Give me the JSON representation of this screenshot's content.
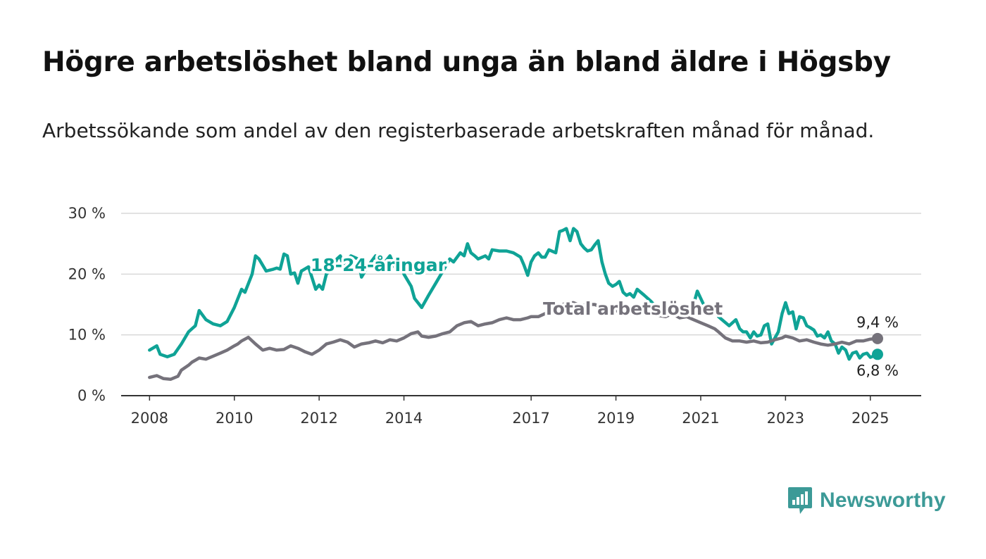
{
  "chart_data": {
    "type": "line",
    "title": "Högre arbetslöshet bland unga än bland äldre i Högsby",
    "subtitle": "Arbetssökande som andel av den registerbaserade arbetskraften månad för månad.",
    "ylim": [
      0,
      30
    ],
    "y_ticks": [
      {
        "value": 0,
        "label": "0 %"
      },
      {
        "value": 10,
        "label": "10 %"
      },
      {
        "value": 20,
        "label": "20 %"
      },
      {
        "value": 30,
        "label": "30 %"
      }
    ],
    "x_ticks": [
      {
        "value": 2008.0,
        "label": "2008"
      },
      {
        "value": 2010.0,
        "label": "2010"
      },
      {
        "value": 2012.0,
        "label": "2012"
      },
      {
        "value": 2014.0,
        "label": "2014"
      },
      {
        "value": 2017.0,
        "label": "2017"
      },
      {
        "value": 2019.0,
        "label": "2019"
      },
      {
        "value": 2021.0,
        "label": "2021"
      },
      {
        "value": 2023.0,
        "label": "2023"
      },
      {
        "value": 2025.0,
        "label": "2025"
      }
    ],
    "grid": true,
    "series": [
      {
        "name": "18-24-åringar",
        "color": "#0fa396",
        "end_label": "6,8 %",
        "points": [
          [
            2008.0,
            7.5
          ],
          [
            2008.17,
            8.2
          ],
          [
            2008.25,
            6.8
          ],
          [
            2008.42,
            6.4
          ],
          [
            2008.58,
            6.8
          ],
          [
            2008.75,
            8.5
          ],
          [
            2008.92,
            10.5
          ],
          [
            2009.0,
            11.0
          ],
          [
            2009.08,
            11.5
          ],
          [
            2009.17,
            14.0
          ],
          [
            2009.33,
            12.5
          ],
          [
            2009.5,
            11.8
          ],
          [
            2009.67,
            11.5
          ],
          [
            2009.83,
            12.2
          ],
          [
            2010.0,
            14.5
          ],
          [
            2010.17,
            17.5
          ],
          [
            2010.25,
            17.0
          ],
          [
            2010.42,
            20.0
          ],
          [
            2010.5,
            23.0
          ],
          [
            2010.58,
            22.5
          ],
          [
            2010.75,
            20.5
          ],
          [
            2010.92,
            20.8
          ],
          [
            2011.0,
            21.0
          ],
          [
            2011.08,
            20.8
          ],
          [
            2011.17,
            23.3
          ],
          [
            2011.25,
            23.0
          ],
          [
            2011.33,
            20.0
          ],
          [
            2011.42,
            20.2
          ],
          [
            2011.5,
            18.5
          ],
          [
            2011.58,
            20.5
          ],
          [
            2011.75,
            21.2
          ],
          [
            2011.92,
            17.5
          ],
          [
            2012.0,
            18.2
          ],
          [
            2012.08,
            17.5
          ],
          [
            2012.17,
            20.0
          ],
          [
            2012.33,
            21.0
          ],
          [
            2012.42,
            22.5
          ],
          [
            2012.5,
            23.0
          ],
          [
            2012.58,
            21.0
          ],
          [
            2012.67,
            22.5
          ],
          [
            2012.75,
            23.0
          ],
          [
            2012.92,
            22.5
          ],
          [
            2013.0,
            19.5
          ],
          [
            2013.17,
            21.5
          ],
          [
            2013.33,
            23.0
          ],
          [
            2013.42,
            21.0
          ],
          [
            2013.5,
            21.5
          ],
          [
            2013.67,
            23.0
          ],
          [
            2013.83,
            20.5
          ],
          [
            2013.92,
            22.0
          ],
          [
            2014.0,
            20.0
          ],
          [
            2014.17,
            18.0
          ],
          [
            2014.25,
            16.0
          ],
          [
            2014.42,
            14.5
          ],
          [
            2014.58,
            16.5
          ],
          [
            2014.75,
            18.5
          ],
          [
            2014.92,
            20.5
          ],
          [
            2015.08,
            22.5
          ],
          [
            2015.17,
            22.0
          ],
          [
            2015.33,
            23.5
          ],
          [
            2015.42,
            23.0
          ],
          [
            2015.5,
            25.0
          ],
          [
            2015.58,
            23.5
          ],
          [
            2015.67,
            23.0
          ],
          [
            2015.75,
            22.5
          ],
          [
            2015.92,
            23.0
          ],
          [
            2016.0,
            22.5
          ],
          [
            2016.08,
            24.0
          ],
          [
            2016.25,
            23.8
          ],
          [
            2016.42,
            23.8
          ],
          [
            2016.58,
            23.5
          ],
          [
            2016.75,
            22.8
          ],
          [
            2016.83,
            21.5
          ],
          [
            2016.92,
            19.8
          ],
          [
            2017.0,
            22.0
          ],
          [
            2017.08,
            23.0
          ],
          [
            2017.17,
            23.5
          ],
          [
            2017.25,
            22.8
          ],
          [
            2017.33,
            22.8
          ],
          [
            2017.42,
            24.0
          ],
          [
            2017.58,
            23.5
          ],
          [
            2017.67,
            27.0
          ],
          [
            2017.75,
            27.2
          ],
          [
            2017.83,
            27.5
          ],
          [
            2017.92,
            25.5
          ],
          [
            2018.0,
            27.5
          ],
          [
            2018.08,
            27.0
          ],
          [
            2018.17,
            25.0
          ],
          [
            2018.25,
            24.3
          ],
          [
            2018.33,
            23.8
          ],
          [
            2018.42,
            24.0
          ],
          [
            2018.5,
            24.8
          ],
          [
            2018.58,
            25.5
          ],
          [
            2018.67,
            22.0
          ],
          [
            2018.75,
            20.0
          ],
          [
            2018.83,
            18.5
          ],
          [
            2018.92,
            18.0
          ],
          [
            2019.0,
            18.3
          ],
          [
            2019.08,
            18.8
          ],
          [
            2019.17,
            17.0
          ],
          [
            2019.25,
            16.5
          ],
          [
            2019.33,
            16.8
          ],
          [
            2019.42,
            16.2
          ],
          [
            2019.5,
            17.5
          ],
          [
            2019.67,
            16.5
          ],
          [
            2019.83,
            15.5
          ],
          [
            2019.92,
            14.8
          ],
          [
            2020.08,
            14.5
          ],
          [
            2020.17,
            14.0
          ],
          [
            2020.33,
            15.0
          ],
          [
            2020.5,
            14.2
          ],
          [
            2020.67,
            14.5
          ],
          [
            2020.83,
            15.0
          ],
          [
            2020.92,
            17.2
          ],
          [
            2021.0,
            16.0
          ],
          [
            2021.08,
            14.8
          ],
          [
            2021.17,
            15.0
          ],
          [
            2021.33,
            14.5
          ],
          [
            2021.42,
            13.0
          ],
          [
            2021.5,
            12.5
          ],
          [
            2021.67,
            11.5
          ],
          [
            2021.83,
            12.5
          ],
          [
            2021.92,
            11.0
          ],
          [
            2022.0,
            10.5
          ],
          [
            2022.08,
            10.5
          ],
          [
            2022.17,
            9.5
          ],
          [
            2022.25,
            10.5
          ],
          [
            2022.33,
            9.8
          ],
          [
            2022.42,
            10.0
          ],
          [
            2022.5,
            11.5
          ],
          [
            2022.58,
            11.8
          ],
          [
            2022.67,
            8.5
          ],
          [
            2022.75,
            9.5
          ],
          [
            2022.83,
            10.5
          ],
          [
            2022.92,
            13.5
          ],
          [
            2023.0,
            15.3
          ],
          [
            2023.08,
            13.5
          ],
          [
            2023.17,
            13.8
          ],
          [
            2023.25,
            11.0
          ],
          [
            2023.33,
            13.0
          ],
          [
            2023.42,
            12.8
          ],
          [
            2023.5,
            11.5
          ],
          [
            2023.58,
            11.2
          ],
          [
            2023.67,
            10.8
          ],
          [
            2023.75,
            9.8
          ],
          [
            2023.83,
            10.0
          ],
          [
            2023.92,
            9.5
          ],
          [
            2024.0,
            10.5
          ],
          [
            2024.08,
            9.0
          ],
          [
            2024.17,
            8.5
          ],
          [
            2024.25,
            7.0
          ],
          [
            2024.33,
            8.0
          ],
          [
            2024.42,
            7.5
          ],
          [
            2024.5,
            6.0
          ],
          [
            2024.58,
            7.0
          ],
          [
            2024.67,
            7.2
          ],
          [
            2024.75,
            6.2
          ],
          [
            2024.83,
            6.8
          ],
          [
            2024.92,
            7.0
          ],
          [
            2025.0,
            6.3
          ],
          [
            2025.17,
            6.8
          ]
        ]
      },
      {
        "name": "Total arbetslöshet",
        "color": "#75727b",
        "end_label": "9,4 %",
        "points": [
          [
            2008.0,
            3.0
          ],
          [
            2008.17,
            3.3
          ],
          [
            2008.33,
            2.8
          ],
          [
            2008.5,
            2.7
          ],
          [
            2008.67,
            3.2
          ],
          [
            2008.75,
            4.2
          ],
          [
            2008.92,
            5.0
          ],
          [
            2009.0,
            5.5
          ],
          [
            2009.17,
            6.2
          ],
          [
            2009.33,
            6.0
          ],
          [
            2009.5,
            6.5
          ],
          [
            2009.67,
            7.0
          ],
          [
            2009.83,
            7.5
          ],
          [
            2010.0,
            8.2
          ],
          [
            2010.08,
            8.5
          ],
          [
            2010.17,
            9.0
          ],
          [
            2010.33,
            9.6
          ],
          [
            2010.5,
            8.5
          ],
          [
            2010.67,
            7.5
          ],
          [
            2010.83,
            7.8
          ],
          [
            2011.0,
            7.5
          ],
          [
            2011.17,
            7.6
          ],
          [
            2011.33,
            8.2
          ],
          [
            2011.5,
            7.8
          ],
          [
            2011.67,
            7.2
          ],
          [
            2011.83,
            6.8
          ],
          [
            2012.0,
            7.5
          ],
          [
            2012.17,
            8.5
          ],
          [
            2012.33,
            8.8
          ],
          [
            2012.5,
            9.2
          ],
          [
            2012.67,
            8.8
          ],
          [
            2012.83,
            8.0
          ],
          [
            2013.0,
            8.5
          ],
          [
            2013.17,
            8.7
          ],
          [
            2013.33,
            9.0
          ],
          [
            2013.5,
            8.7
          ],
          [
            2013.67,
            9.2
          ],
          [
            2013.83,
            9.0
          ],
          [
            2014.0,
            9.5
          ],
          [
            2014.17,
            10.2
          ],
          [
            2014.33,
            10.5
          ],
          [
            2014.42,
            9.8
          ],
          [
            2014.58,
            9.6
          ],
          [
            2014.75,
            9.8
          ],
          [
            2014.92,
            10.2
          ],
          [
            2015.08,
            10.5
          ],
          [
            2015.25,
            11.5
          ],
          [
            2015.42,
            12.0
          ],
          [
            2015.58,
            12.2
          ],
          [
            2015.75,
            11.5
          ],
          [
            2015.92,
            11.8
          ],
          [
            2016.08,
            12.0
          ],
          [
            2016.25,
            12.5
          ],
          [
            2016.42,
            12.8
          ],
          [
            2016.58,
            12.5
          ],
          [
            2016.75,
            12.5
          ],
          [
            2016.92,
            12.8
          ],
          [
            2017.0,
            13.0
          ],
          [
            2017.17,
            13.0
          ],
          [
            2017.33,
            13.5
          ],
          [
            2017.5,
            14.0
          ],
          [
            2017.67,
            14.8
          ],
          [
            2017.83,
            15.2
          ],
          [
            2018.0,
            15.3
          ],
          [
            2018.17,
            14.8
          ],
          [
            2018.33,
            15.0
          ],
          [
            2018.5,
            15.0
          ],
          [
            2018.67,
            14.5
          ],
          [
            2018.83,
            14.5
          ],
          [
            2019.0,
            14.0
          ],
          [
            2019.17,
            13.5
          ],
          [
            2019.33,
            13.5
          ],
          [
            2019.5,
            13.8
          ],
          [
            2019.67,
            13.5
          ],
          [
            2019.83,
            13.5
          ],
          [
            2020.0,
            13.2
          ],
          [
            2020.17,
            13.0
          ],
          [
            2020.33,
            13.5
          ],
          [
            2020.5,
            12.8
          ],
          [
            2020.67,
            13.0
          ],
          [
            2020.83,
            12.5
          ],
          [
            2021.0,
            12.0
          ],
          [
            2021.17,
            11.5
          ],
          [
            2021.33,
            11.0
          ],
          [
            2021.42,
            10.5
          ],
          [
            2021.58,
            9.5
          ],
          [
            2021.75,
            9.0
          ],
          [
            2021.92,
            9.0
          ],
          [
            2022.08,
            8.8
          ],
          [
            2022.25,
            9.0
          ],
          [
            2022.42,
            8.7
          ],
          [
            2022.58,
            8.8
          ],
          [
            2022.75,
            9.2
          ],
          [
            2022.92,
            9.5
          ],
          [
            2023.0,
            9.8
          ],
          [
            2023.17,
            9.5
          ],
          [
            2023.33,
            9.0
          ],
          [
            2023.5,
            9.2
          ],
          [
            2023.67,
            8.8
          ],
          [
            2023.83,
            8.5
          ],
          [
            2024.0,
            8.3
          ],
          [
            2024.17,
            8.5
          ],
          [
            2024.33,
            8.8
          ],
          [
            2024.5,
            8.5
          ],
          [
            2024.67,
            9.0
          ],
          [
            2024.83,
            9.0
          ],
          [
            2025.0,
            9.3
          ],
          [
            2025.17,
            9.4
          ]
        ]
      }
    ],
    "series_labels": [
      {
        "series": 0,
        "text": "18-24-åringar",
        "at": [
          2013.4,
          20.5
        ]
      },
      {
        "series": 1,
        "text": "Total arbetslöshet",
        "at": [
          2019.4,
          13.3
        ]
      }
    ]
  },
  "logo": {
    "text": "Newsworthy",
    "color": "#3c9a97"
  }
}
